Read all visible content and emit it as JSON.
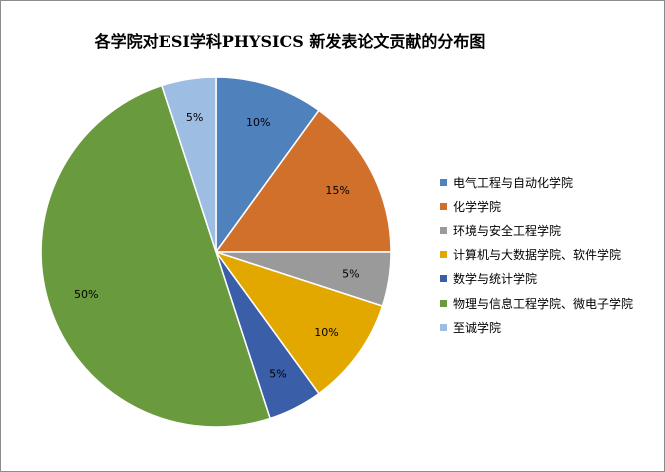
{
  "chart_data": {
    "type": "pie",
    "title": "各学院对ESI学科PHYSICS 新发表论文贡献的分布图",
    "legend_position": "right",
    "slices": [
      {
        "label": "电气工程与自动化学院",
        "value": 10,
        "value_label": "10%",
        "color": "#4f81bd"
      },
      {
        "label": "化学学院",
        "value": 15,
        "value_label": "15%",
        "color": "#d1702b"
      },
      {
        "label": "环境与安全工程学院",
        "value": 5,
        "value_label": "5%",
        "color": "#9a9a9a"
      },
      {
        "label": "计算机与大数据学院、软件学院",
        "value": 10,
        "value_label": "10%",
        "color": "#e3a800"
      },
      {
        "label": "数学与统计学院",
        "value": 5,
        "value_label": "5%",
        "color": "#3a5ea8"
      },
      {
        "label": "物理与信息工程学院、微电子学院",
        "value": 50,
        "value_label": "50%",
        "color": "#6a9a3e"
      },
      {
        "label": "至诚学院",
        "value": 5,
        "value_label": "5%",
        "color": "#9dbde2"
      }
    ]
  }
}
